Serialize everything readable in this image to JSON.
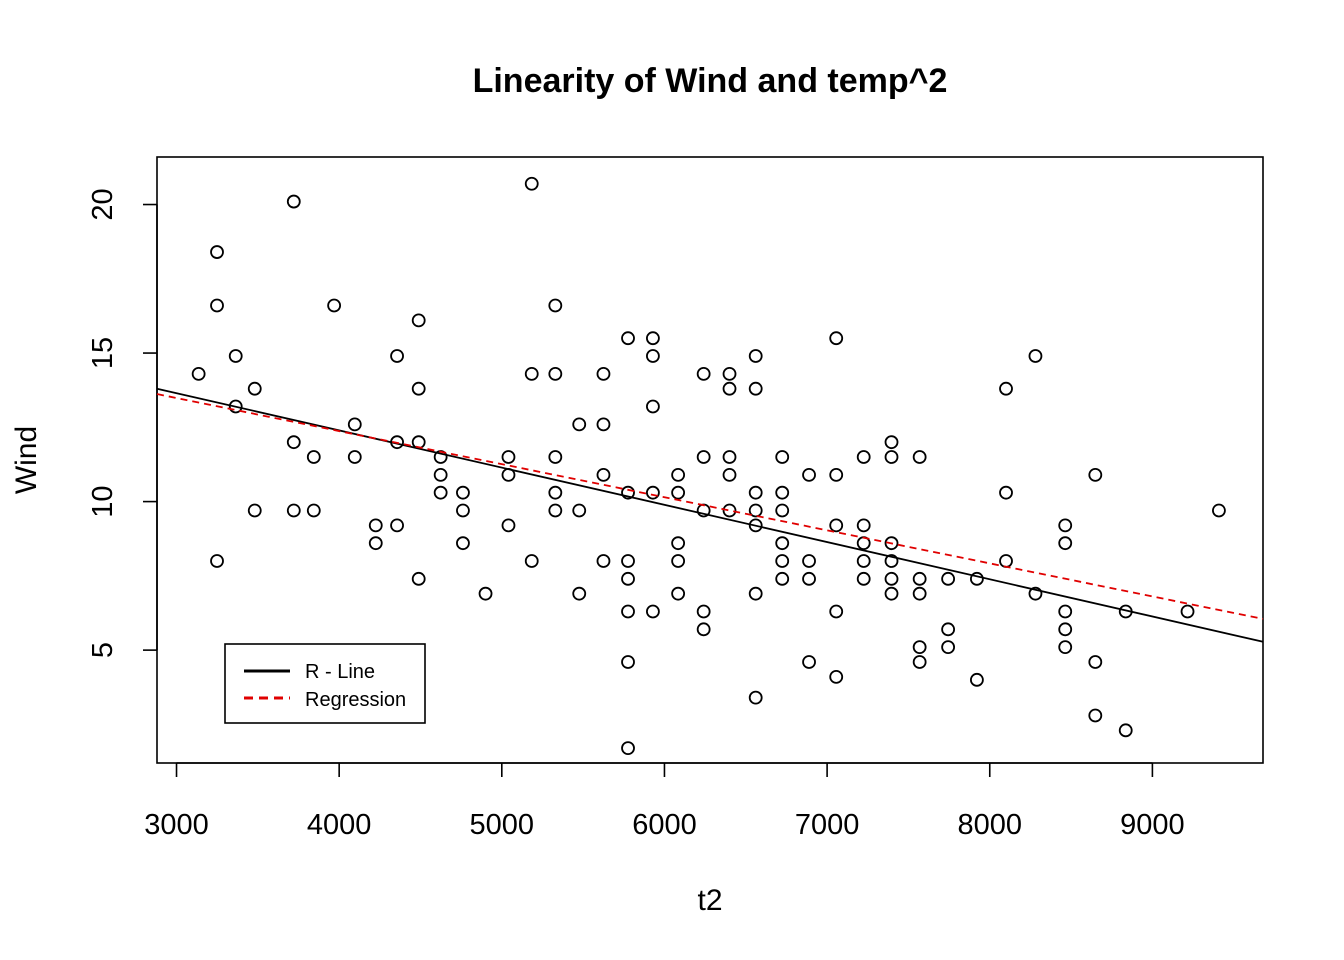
{
  "chart_data": {
    "type": "scatter",
    "title": "Linearity of Wind and temp^2",
    "xlabel": "t2",
    "ylabel": "Wind",
    "xlim": [
      2880,
      9680
    ],
    "ylim": [
      1.2,
      21.6
    ],
    "x_ticks": [
      3000,
      4000,
      5000,
      6000,
      7000,
      8000,
      9000
    ],
    "x_tick_labels": [
      "3000",
      "4000",
      "5000",
      "6000",
      "7000",
      "8000",
      "9000"
    ],
    "y_ticks": [
      5,
      10,
      15,
      20
    ],
    "y_tick_labels": [
      "5",
      "10",
      "15",
      "20"
    ],
    "grid": false,
    "legend_position": "bottom-left",
    "legend": [
      {
        "label": "R - Line",
        "color": "#000000",
        "style": "solid"
      },
      {
        "label": "Regression",
        "color": "#e00000",
        "style": "dashed"
      }
    ],
    "points": [
      [
        3136,
        14.3
      ],
      [
        3249,
        8.0
      ],
      [
        3249,
        16.6
      ],
      [
        3249,
        18.4
      ],
      [
        3364,
        13.2
      ],
      [
        3364,
        14.9
      ],
      [
        3481,
        9.7
      ],
      [
        3481,
        13.8
      ],
      [
        3721,
        9.7
      ],
      [
        3721,
        12.0
      ],
      [
        3721,
        20.1
      ],
      [
        3844,
        9.7
      ],
      [
        3844,
        11.5
      ],
      [
        3969,
        16.6
      ],
      [
        4096,
        11.5
      ],
      [
        4096,
        12.6
      ],
      [
        4225,
        8.6
      ],
      [
        4225,
        9.2
      ],
      [
        4356,
        9.2
      ],
      [
        4356,
        12.0
      ],
      [
        4356,
        14.9
      ],
      [
        4489,
        7.4
      ],
      [
        4489,
        12.0
      ],
      [
        4489,
        13.8
      ],
      [
        4489,
        16.1
      ],
      [
        4624,
        10.3
      ],
      [
        4624,
        10.9
      ],
      [
        4624,
        11.5
      ],
      [
        4761,
        8.6
      ],
      [
        4761,
        9.7
      ],
      [
        4761,
        10.3
      ],
      [
        4900,
        6.9
      ],
      [
        5041,
        9.2
      ],
      [
        5041,
        10.9
      ],
      [
        5041,
        11.5
      ],
      [
        5184,
        8.0
      ],
      [
        5184,
        14.3
      ],
      [
        5184,
        20.7
      ],
      [
        5329,
        9.7
      ],
      [
        5329,
        10.3
      ],
      [
        5329,
        11.5
      ],
      [
        5329,
        14.3
      ],
      [
        5329,
        16.6
      ],
      [
        5476,
        6.9
      ],
      [
        5476,
        9.7
      ],
      [
        5476,
        12.6
      ],
      [
        5625,
        8.0
      ],
      [
        5625,
        10.9
      ],
      [
        5625,
        12.6
      ],
      [
        5625,
        14.3
      ],
      [
        5776,
        1.7
      ],
      [
        5776,
        4.6
      ],
      [
        5776,
        6.3
      ],
      [
        5776,
        7.4
      ],
      [
        5776,
        8.0
      ],
      [
        5776,
        10.3
      ],
      [
        5776,
        15.5
      ],
      [
        5929,
        6.3
      ],
      [
        5929,
        10.3
      ],
      [
        5929,
        13.2
      ],
      [
        5929,
        14.9
      ],
      [
        5929,
        15.5
      ],
      [
        6084,
        6.9
      ],
      [
        6084,
        8.0
      ],
      [
        6084,
        8.6
      ],
      [
        6084,
        10.3
      ],
      [
        6084,
        10.9
      ],
      [
        6241,
        5.7
      ],
      [
        6241,
        6.3
      ],
      [
        6241,
        9.7
      ],
      [
        6241,
        11.5
      ],
      [
        6241,
        14.3
      ],
      [
        6400,
        9.7
      ],
      [
        6400,
        10.9
      ],
      [
        6400,
        11.5
      ],
      [
        6400,
        13.8
      ],
      [
        6400,
        14.3
      ],
      [
        6561,
        3.4
      ],
      [
        6561,
        6.9
      ],
      [
        6561,
        9.2
      ],
      [
        6561,
        9.7
      ],
      [
        6561,
        10.3
      ],
      [
        6561,
        13.8
      ],
      [
        6561,
        14.9
      ],
      [
        6724,
        7.4
      ],
      [
        6724,
        8.0
      ],
      [
        6724,
        8.6
      ],
      [
        6724,
        9.7
      ],
      [
        6724,
        10.3
      ],
      [
        6724,
        11.5
      ],
      [
        6889,
        4.6
      ],
      [
        6889,
        7.4
      ],
      [
        6889,
        8.0
      ],
      [
        6889,
        10.9
      ],
      [
        7056,
        4.1
      ],
      [
        7056,
        6.3
      ],
      [
        7056,
        9.2
      ],
      [
        7056,
        10.9
      ],
      [
        7056,
        15.5
      ],
      [
        7225,
        7.4
      ],
      [
        7225,
        8.0
      ],
      [
        7225,
        8.6
      ],
      [
        7225,
        9.2
      ],
      [
        7225,
        11.5
      ],
      [
        7396,
        6.9
      ],
      [
        7396,
        7.4
      ],
      [
        7396,
        8.0
      ],
      [
        7396,
        8.6
      ],
      [
        7396,
        11.5
      ],
      [
        7396,
        12.0
      ],
      [
        7569,
        4.6
      ],
      [
        7569,
        5.1
      ],
      [
        7569,
        6.9
      ],
      [
        7569,
        7.4
      ],
      [
        7569,
        11.5
      ],
      [
        7744,
        5.1
      ],
      [
        7744,
        5.7
      ],
      [
        7744,
        7.4
      ],
      [
        7921,
        4.0
      ],
      [
        7921,
        7.4
      ],
      [
        8100,
        8.0
      ],
      [
        8100,
        10.3
      ],
      [
        8100,
        13.8
      ],
      [
        8281,
        6.9
      ],
      [
        8281,
        14.9
      ],
      [
        8464,
        5.1
      ],
      [
        8464,
        5.7
      ],
      [
        8464,
        6.3
      ],
      [
        8464,
        8.6
      ],
      [
        8464,
        9.2
      ],
      [
        8649,
        2.8
      ],
      [
        8649,
        4.6
      ],
      [
        8649,
        10.9
      ],
      [
        8836,
        2.3
      ],
      [
        8836,
        6.3
      ],
      [
        9216,
        6.3
      ],
      [
        9409,
        9.7
      ]
    ],
    "r_line": {
      "x": [
        2880,
        9680
      ],
      "y": [
        13.8,
        5.28
      ]
    },
    "regression_line": {
      "x": [
        2880,
        9680
      ],
      "y": [
        13.62,
        6.05
      ]
    }
  }
}
